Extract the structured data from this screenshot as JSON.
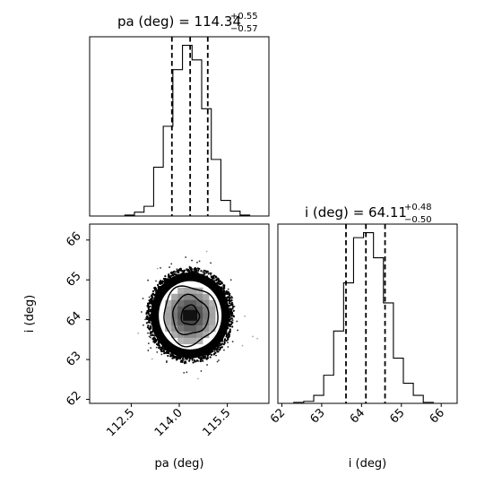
{
  "chart_data": [
    {
      "type": "histogram",
      "panel": "pa-marginal",
      "title": {
        "parameter": "pa (deg)",
        "median": "114.34",
        "plus": "+0.55",
        "minus": "−0.57"
      },
      "quantiles": [
        113.77,
        114.34,
        114.89
      ],
      "xlim": [
        111.2,
        116.8
      ],
      "bin_edges": [
        112.3,
        112.6,
        112.9,
        113.2,
        113.5,
        113.8,
        114.1,
        114.4,
        114.7,
        115.0,
        115.3,
        115.6,
        115.9,
        116.2
      ],
      "counts": [
        1,
        4,
        10,
        50,
        92,
        150,
        175,
        160,
        110,
        58,
        16,
        5,
        1
      ]
    },
    {
      "type": "histogram",
      "panel": "i-marginal",
      "title": {
        "parameter": "i (deg)",
        "median": "64.11",
        "plus": "+0.48",
        "minus": "−0.50"
      },
      "quantiles": [
        63.61,
        64.11,
        64.59
      ],
      "xlim": [
        61.9,
        66.4
      ],
      "xticks": [
        62,
        63,
        64,
        65,
        66
      ],
      "xlabel": "i (deg)",
      "bin_edges": [
        62.3,
        62.55,
        62.8,
        63.05,
        63.3,
        63.55,
        63.8,
        64.05,
        64.3,
        64.55,
        64.8,
        65.05,
        65.3,
        65.55,
        65.8
      ],
      "counts": [
        1,
        2,
        8,
        28,
        72,
        120,
        165,
        170,
        145,
        100,
        45,
        20,
        8,
        1
      ]
    },
    {
      "type": "2d-histogram-contour",
      "panel": "pa-vs-i",
      "xlabel": "pa (deg)",
      "ylabel": "i (deg)",
      "xlim": [
        111.2,
        116.8
      ],
      "ylim": [
        61.9,
        66.4
      ],
      "xticks": [
        "112.5",
        "114.0",
        "115.5"
      ],
      "yticks": [
        "62",
        "63",
        "64",
        "65",
        "66"
      ],
      "center": [
        114.34,
        64.11
      ],
      "sigma": [
        0.56,
        0.49
      ],
      "contour_levels_sigma": [
        0.5,
        1.0,
        1.5,
        2.0
      ]
    }
  ]
}
